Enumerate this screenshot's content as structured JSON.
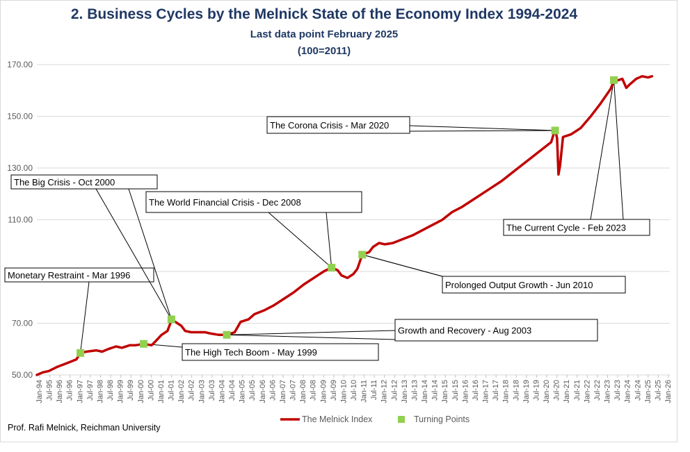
{
  "title": "2.  Business Cycles by the Melnick State of the Economy Index 1994-2024",
  "subtitle": "Last data point February 2025",
  "subtitle2": "(100=2011)",
  "author": "Prof. Rafi Melnick, Reichman University",
  "chart_data": {
    "type": "line",
    "y_ticks": [
      "50.00",
      "70.00",
      "90.00",
      "110.00",
      "130.00",
      "150.00",
      "170.00"
    ],
    "y_labeled": [
      true,
      true,
      false,
      true,
      true,
      true,
      true
    ],
    "ylim": [
      50,
      170
    ],
    "x_ticks": [
      "Jan-94",
      "Jul-95",
      "Jan-96",
      "Jul-96",
      "Jan-97",
      "Jul-97",
      "Jan-98",
      "Jul-98",
      "Jan-99",
      "Jul-99",
      "Jan-00",
      "Jul-00",
      "Jan-01",
      "Jul-01",
      "Jan-02",
      "Jul-02",
      "Jan-03",
      "Jul-03",
      "Jan-04",
      "Jul-04",
      "Jan-05",
      "Jul-05",
      "Jan-06",
      "Jul-06",
      "Jan-07",
      "Jul-07",
      "Jan-08",
      "Jul-08",
      "Jan-09",
      "Jul-09",
      "Jan-10",
      "Jul-10",
      "Jan-11",
      "Jul-11",
      "Jan-12",
      "Jul-12",
      "Jan-13",
      "Jul-13",
      "Jan-14",
      "Jul-14",
      "Jan-15",
      "Jul-15",
      "Jan-16",
      "Jul-16",
      "Jan-17",
      "Jul-17",
      "Jan-18",
      "Jul-18",
      "Jan-19",
      "Jul-19",
      "Jan-20",
      "Jul-20",
      "Jan-21",
      "Jul-21",
      "Jan-22",
      "Jul-22",
      "Jan-23",
      "Jul-23",
      "Jan-24",
      "Jul-24",
      "Jan-25",
      "Jul-25",
      "Jan-26"
    ],
    "xlim": [
      1994.0,
      2026.0
    ],
    "grid": true,
    "legend_position": "bottom",
    "series": [
      {
        "name": "The Melnick Index",
        "color": "#c00000",
        "points": [
          [
            1994.0,
            50.0
          ],
          [
            1994.3,
            51.0
          ],
          [
            1994.6,
            51.5
          ],
          [
            1995.0,
            53.0
          ],
          [
            1995.5,
            54.5
          ],
          [
            1996.0,
            56.0
          ],
          [
            1996.2,
            58.5
          ],
          [
            1996.5,
            59.0
          ],
          [
            1997.0,
            59.5
          ],
          [
            1997.3,
            59.0
          ],
          [
            1997.6,
            60.0
          ],
          [
            1998.0,
            61.0
          ],
          [
            1998.3,
            60.5
          ],
          [
            1998.7,
            61.5
          ],
          [
            1999.0,
            61.5
          ],
          [
            1999.4,
            62.0
          ],
          [
            1999.8,
            61.5
          ],
          [
            2000.0,
            63.0
          ],
          [
            2000.3,
            65.5
          ],
          [
            2000.6,
            67.0
          ],
          [
            2000.8,
            71.0
          ],
          [
            2001.0,
            70.5
          ],
          [
            2001.3,
            69.0
          ],
          [
            2001.5,
            67.0
          ],
          [
            2001.8,
            66.5
          ],
          [
            2002.2,
            66.5
          ],
          [
            2002.5,
            66.5
          ],
          [
            2002.8,
            66.0
          ],
          [
            2003.2,
            65.5
          ],
          [
            2003.6,
            65.5
          ],
          [
            2004.0,
            66.5
          ],
          [
            2004.3,
            70.5
          ],
          [
            2004.7,
            71.5
          ],
          [
            2005.0,
            73.5
          ],
          [
            2005.5,
            75.0
          ],
          [
            2006.0,
            77.0
          ],
          [
            2006.5,
            79.5
          ],
          [
            2007.0,
            82.0
          ],
          [
            2007.5,
            85.0
          ],
          [
            2008.0,
            87.5
          ],
          [
            2008.5,
            90.0
          ],
          [
            2008.9,
            91.5
          ],
          [
            2009.2,
            90.5
          ],
          [
            2009.4,
            88.5
          ],
          [
            2009.7,
            87.5
          ],
          [
            2010.0,
            89.0
          ],
          [
            2010.2,
            91.0
          ],
          [
            2010.45,
            96.5
          ],
          [
            2010.8,
            97.5
          ],
          [
            2011.0,
            99.5
          ],
          [
            2011.3,
            101.0
          ],
          [
            2011.6,
            100.5
          ],
          [
            2012.0,
            101.0
          ],
          [
            2012.5,
            102.5
          ],
          [
            2013.0,
            104.0
          ],
          [
            2013.5,
            106.0
          ],
          [
            2014.0,
            108.0
          ],
          [
            2014.5,
            110.0
          ],
          [
            2015.0,
            113.0
          ],
          [
            2015.5,
            115.0
          ],
          [
            2016.0,
            117.5
          ],
          [
            2016.5,
            120.0
          ],
          [
            2017.0,
            122.5
          ],
          [
            2017.5,
            125.0
          ],
          [
            2018.0,
            128.0
          ],
          [
            2018.5,
            131.0
          ],
          [
            2019.0,
            134.0
          ],
          [
            2019.5,
            137.0
          ],
          [
            2020.0,
            140.0
          ],
          [
            2020.2,
            145.0
          ],
          [
            2020.3,
            141.5
          ],
          [
            2020.37,
            127.5
          ],
          [
            2020.45,
            131.0
          ],
          [
            2020.6,
            142.0
          ],
          [
            2021.0,
            143.0
          ],
          [
            2021.5,
            145.5
          ],
          [
            2022.0,
            150.0
          ],
          [
            2022.5,
            155.0
          ],
          [
            2023.0,
            160.5
          ],
          [
            2023.17,
            163.5
          ],
          [
            2023.4,
            164.0
          ],
          [
            2023.6,
            164.5
          ],
          [
            2023.8,
            161.0
          ],
          [
            2024.0,
            162.5
          ],
          [
            2024.3,
            164.5
          ],
          [
            2024.6,
            165.5
          ],
          [
            2024.9,
            165.0
          ],
          [
            2025.1,
            165.5
          ]
        ]
      }
    ],
    "turning_points": {
      "name": "Turning Points",
      "color": "#92d050",
      "points": [
        [
          1996.2,
          58.5
        ],
        [
          1999.4,
          62.0
        ],
        [
          2000.8,
          71.5
        ],
        [
          2003.6,
          65.5
        ],
        [
          2008.9,
          91.5
        ],
        [
          2010.45,
          96.5
        ],
        [
          2020.2,
          144.5
        ],
        [
          2023.17,
          164.0
        ]
      ]
    },
    "annotations": [
      {
        "text": "Monetary Restraint - Mar 1996",
        "target": [
          1996.2,
          58.5
        ]
      },
      {
        "text": "The Big Crisis - Oct 2000",
        "target": [
          2000.8,
          71.5
        ]
      },
      {
        "text": "The High  Tech Boom - May 1999",
        "target": [
          1999.4,
          62.0
        ]
      },
      {
        "text": "The World Financial Crisis - Dec 2008",
        "target": [
          2008.9,
          91.5
        ]
      },
      {
        "text": "Growth and Recovery - Aug 2003",
        "target": [
          2003.6,
          65.5
        ]
      },
      {
        "text": "Prolonged Output Growth - Jun 2010",
        "target": [
          2010.45,
          96.5
        ]
      },
      {
        "text": "The Corona Crisis - Mar 2020",
        "target": [
          2020.2,
          144.5
        ]
      },
      {
        "text": "The Current Cycle - Feb 2023",
        "target": [
          2023.17,
          164.0
        ]
      }
    ]
  }
}
